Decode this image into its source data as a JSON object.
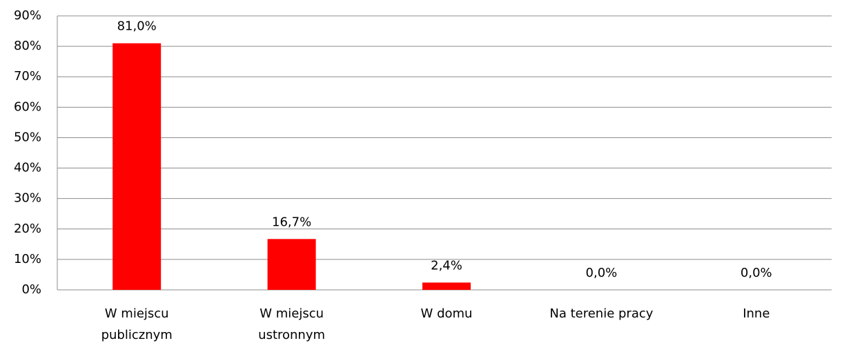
{
  "chart_data": {
    "type": "bar",
    "categories": [
      "W miejscu publicznym",
      "W miejscu ustronnym",
      "W domu",
      "Na terenie pracy",
      "Inne"
    ],
    "values": [
      81.0,
      16.7,
      2.4,
      0.0,
      0.0
    ],
    "value_labels": [
      "81,0%",
      "16,7%",
      "2,4%",
      "0,0%",
      "0,0%"
    ],
    "color": "#ff0000",
    "ylim": [
      0,
      90
    ],
    "yticks": [
      {
        "value": 0,
        "label": "0%"
      },
      {
        "value": 10,
        "label": "10%"
      },
      {
        "value": 20,
        "label": "20%"
      },
      {
        "value": 30,
        "label": "30%"
      },
      {
        "value": 40,
        "label": "40%"
      },
      {
        "value": 50,
        "label": "50%"
      },
      {
        "value": 60,
        "label": "60%"
      },
      {
        "value": 70,
        "label": "70%"
      },
      {
        "value": 80,
        "label": "80%"
      },
      {
        "value": 90,
        "label": "90%"
      }
    ],
    "grid": true
  }
}
